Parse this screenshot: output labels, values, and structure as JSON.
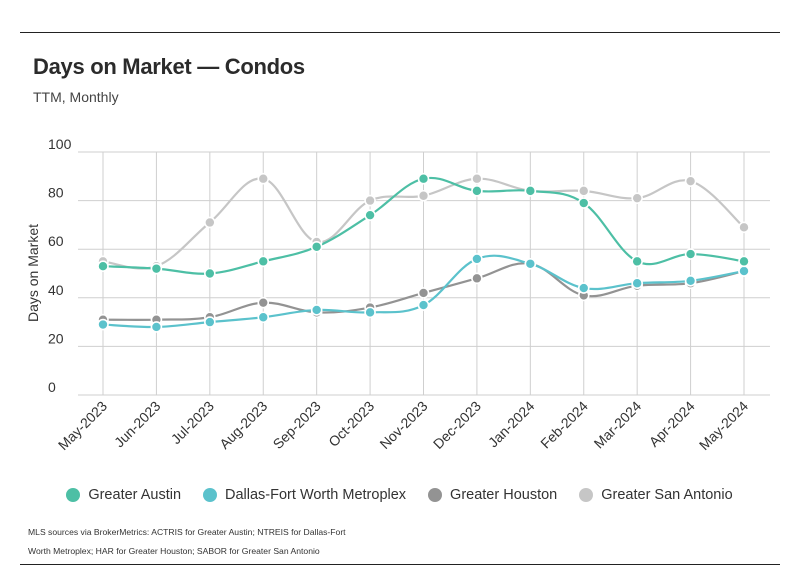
{
  "header": {
    "title": "Days on Market — Condos",
    "subtitle": "TTM, Monthly"
  },
  "footer": {
    "source": "MLS sources via BrokerMetrics: ACTRIS for Greater Austin; NTREIS for Dallas-Fort Worth Metroplex; HAR for Greater Houston; SABOR for Greater San Antonio"
  },
  "chart_data": {
    "type": "line",
    "title": "Days on Market — Condos",
    "subtitle": "TTM, Monthly",
    "xlabel": "",
    "ylabel": "Days on Market",
    "ylim": [
      0,
      100
    ],
    "yticks": [
      "0",
      "20",
      "40",
      "60",
      "80",
      "100"
    ],
    "grid": true,
    "legend_position": "bottom",
    "categories": [
      "May-2023",
      "Jun-2023",
      "Jul-2023",
      "Aug-2023",
      "Sep-2023",
      "Oct-2023",
      "Nov-2023",
      "Dec-2023",
      "Jan-2024",
      "Feb-2024",
      "Mar-2024",
      "Apr-2024",
      "May-2024"
    ],
    "series": [
      {
        "name": "Greater Austin",
        "color": "#4dbfa5",
        "values": [
          53,
          52,
          50,
          55,
          61,
          74,
          89,
          84,
          84,
          79,
          55,
          58,
          55
        ]
      },
      {
        "name": "Dallas-Fort Worth Metroplex",
        "color": "#5bc2cc",
        "values": [
          29,
          28,
          30,
          32,
          35,
          34,
          37,
          56,
          54,
          44,
          46,
          47,
          51
        ]
      },
      {
        "name": "Greater Houston",
        "color": "#939393",
        "values": [
          31,
          31,
          32,
          38,
          34,
          36,
          42,
          48,
          54,
          41,
          45,
          46,
          51
        ]
      },
      {
        "name": "Greater San Antonio",
        "color": "#c6c6c6",
        "values": [
          55,
          53,
          71,
          89,
          63,
          80,
          82,
          89,
          84,
          84,
          81,
          88,
          69
        ]
      }
    ]
  }
}
